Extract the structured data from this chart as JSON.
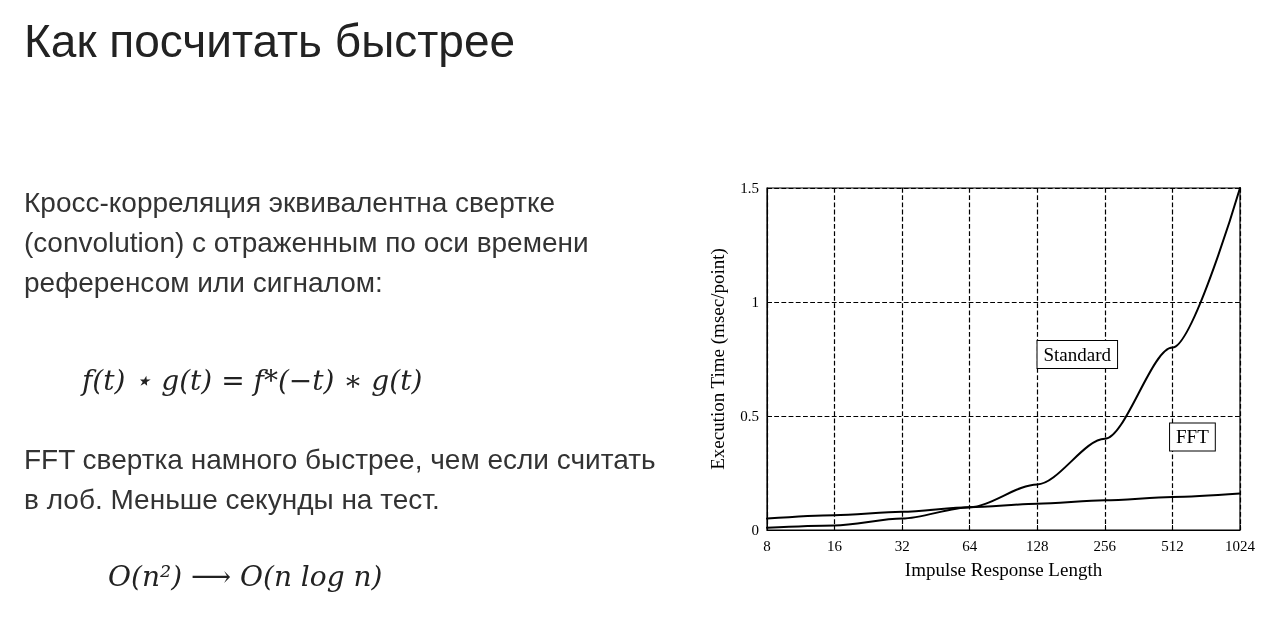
{
  "chart_data": {
    "type": "line",
    "title": "Как посчитать быстрее",
    "annotations": [
      "Кросс-корреляция эквивалентна свертке (convolution) с отраженным по оси времени референсом или сигналом:",
      "f(t) ⋆ g(t) = f*(−t) ∗ g(t)",
      "FFT свертка намного быстрее, чем если считать в лоб. Меньше секунды на тест.",
      "O(n²) ⟶ O(n log n)"
    ],
    "xlabel": "Impulse Response Length",
    "ylabel": "Execution Time (msec/point)",
    "x": [
      8,
      16,
      32,
      64,
      128,
      256,
      512,
      1024
    ],
    "series": [
      {
        "name": "Standard",
        "color": "#000000",
        "values": [
          0.01,
          0.02,
          0.05,
          0.1,
          0.2,
          0.4,
          0.8,
          1.5
        ]
      },
      {
        "name": "FFT",
        "color": "#000000",
        "values": [
          0.05,
          0.065,
          0.08,
          0.1,
          0.115,
          0.13,
          0.145,
          0.16
        ]
      }
    ],
    "log": "x",
    "xlim": [
      8,
      1024
    ],
    "xticks": [
      8,
      16,
      32,
      64,
      128,
      256,
      512,
      1024
    ],
    "ylim": [
      0,
      1.5
    ],
    "yticks": [
      0,
      0.5,
      1,
      1.5
    ],
    "grid": true,
    "legend": false,
    "marker": "none",
    "line_style": "solid"
  }
}
